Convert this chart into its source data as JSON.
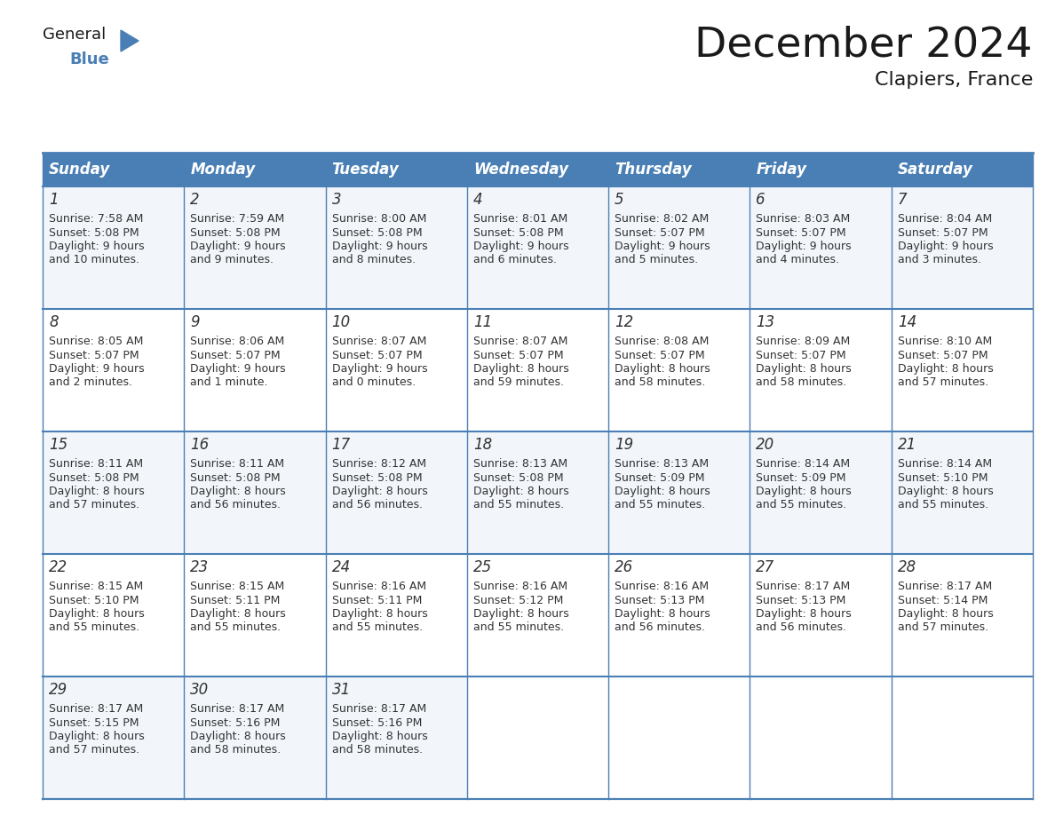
{
  "title": "December 2024",
  "subtitle": "Clapiers, France",
  "header_bg": "#4a7fb5",
  "header_text": "#ffffff",
  "cell_bg_even": "#f2f6fb",
  "cell_bg_odd": "#ffffff",
  "grid_color": "#4a7fb5",
  "day_headers": [
    "Sunday",
    "Monday",
    "Tuesday",
    "Wednesday",
    "Thursday",
    "Friday",
    "Saturday"
  ],
  "days": [
    {
      "day": 1,
      "col": 0,
      "row": 0,
      "sunrise": "7:58 AM",
      "sunset": "5:08 PM",
      "daylight1": "9 hours",
      "daylight2": "and 10 minutes."
    },
    {
      "day": 2,
      "col": 1,
      "row": 0,
      "sunrise": "7:59 AM",
      "sunset": "5:08 PM",
      "daylight1": "9 hours",
      "daylight2": "and 9 minutes."
    },
    {
      "day": 3,
      "col": 2,
      "row": 0,
      "sunrise": "8:00 AM",
      "sunset": "5:08 PM",
      "daylight1": "9 hours",
      "daylight2": "and 8 minutes."
    },
    {
      "day": 4,
      "col": 3,
      "row": 0,
      "sunrise": "8:01 AM",
      "sunset": "5:08 PM",
      "daylight1": "9 hours",
      "daylight2": "and 6 minutes."
    },
    {
      "day": 5,
      "col": 4,
      "row": 0,
      "sunrise": "8:02 AM",
      "sunset": "5:07 PM",
      "daylight1": "9 hours",
      "daylight2": "and 5 minutes."
    },
    {
      "day": 6,
      "col": 5,
      "row": 0,
      "sunrise": "8:03 AM",
      "sunset": "5:07 PM",
      "daylight1": "9 hours",
      "daylight2": "and 4 minutes."
    },
    {
      "day": 7,
      "col": 6,
      "row": 0,
      "sunrise": "8:04 AM",
      "sunset": "5:07 PM",
      "daylight1": "9 hours",
      "daylight2": "and 3 minutes."
    },
    {
      "day": 8,
      "col": 0,
      "row": 1,
      "sunrise": "8:05 AM",
      "sunset": "5:07 PM",
      "daylight1": "9 hours",
      "daylight2": "and 2 minutes."
    },
    {
      "day": 9,
      "col": 1,
      "row": 1,
      "sunrise": "8:06 AM",
      "sunset": "5:07 PM",
      "daylight1": "9 hours",
      "daylight2": "and 1 minute."
    },
    {
      "day": 10,
      "col": 2,
      "row": 1,
      "sunrise": "8:07 AM",
      "sunset": "5:07 PM",
      "daylight1": "9 hours",
      "daylight2": "and 0 minutes."
    },
    {
      "day": 11,
      "col": 3,
      "row": 1,
      "sunrise": "8:07 AM",
      "sunset": "5:07 PM",
      "daylight1": "8 hours",
      "daylight2": "and 59 minutes."
    },
    {
      "day": 12,
      "col": 4,
      "row": 1,
      "sunrise": "8:08 AM",
      "sunset": "5:07 PM",
      "daylight1": "8 hours",
      "daylight2": "and 58 minutes."
    },
    {
      "day": 13,
      "col": 5,
      "row": 1,
      "sunrise": "8:09 AM",
      "sunset": "5:07 PM",
      "daylight1": "8 hours",
      "daylight2": "and 58 minutes."
    },
    {
      "day": 14,
      "col": 6,
      "row": 1,
      "sunrise": "8:10 AM",
      "sunset": "5:07 PM",
      "daylight1": "8 hours",
      "daylight2": "and 57 minutes."
    },
    {
      "day": 15,
      "col": 0,
      "row": 2,
      "sunrise": "8:11 AM",
      "sunset": "5:08 PM",
      "daylight1": "8 hours",
      "daylight2": "and 57 minutes."
    },
    {
      "day": 16,
      "col": 1,
      "row": 2,
      "sunrise": "8:11 AM",
      "sunset": "5:08 PM",
      "daylight1": "8 hours",
      "daylight2": "and 56 minutes."
    },
    {
      "day": 17,
      "col": 2,
      "row": 2,
      "sunrise": "8:12 AM",
      "sunset": "5:08 PM",
      "daylight1": "8 hours",
      "daylight2": "and 56 minutes."
    },
    {
      "day": 18,
      "col": 3,
      "row": 2,
      "sunrise": "8:13 AM",
      "sunset": "5:08 PM",
      "daylight1": "8 hours",
      "daylight2": "and 55 minutes."
    },
    {
      "day": 19,
      "col": 4,
      "row": 2,
      "sunrise": "8:13 AM",
      "sunset": "5:09 PM",
      "daylight1": "8 hours",
      "daylight2": "and 55 minutes."
    },
    {
      "day": 20,
      "col": 5,
      "row": 2,
      "sunrise": "8:14 AM",
      "sunset": "5:09 PM",
      "daylight1": "8 hours",
      "daylight2": "and 55 minutes."
    },
    {
      "day": 21,
      "col": 6,
      "row": 2,
      "sunrise": "8:14 AM",
      "sunset": "5:10 PM",
      "daylight1": "8 hours",
      "daylight2": "and 55 minutes."
    },
    {
      "day": 22,
      "col": 0,
      "row": 3,
      "sunrise": "8:15 AM",
      "sunset": "5:10 PM",
      "daylight1": "8 hours",
      "daylight2": "and 55 minutes."
    },
    {
      "day": 23,
      "col": 1,
      "row": 3,
      "sunrise": "8:15 AM",
      "sunset": "5:11 PM",
      "daylight1": "8 hours",
      "daylight2": "and 55 minutes."
    },
    {
      "day": 24,
      "col": 2,
      "row": 3,
      "sunrise": "8:16 AM",
      "sunset": "5:11 PM",
      "daylight1": "8 hours",
      "daylight2": "and 55 minutes."
    },
    {
      "day": 25,
      "col": 3,
      "row": 3,
      "sunrise": "8:16 AM",
      "sunset": "5:12 PM",
      "daylight1": "8 hours",
      "daylight2": "and 55 minutes."
    },
    {
      "day": 26,
      "col": 4,
      "row": 3,
      "sunrise": "8:16 AM",
      "sunset": "5:13 PM",
      "daylight1": "8 hours",
      "daylight2": "and 56 minutes."
    },
    {
      "day": 27,
      "col": 5,
      "row": 3,
      "sunrise": "8:17 AM",
      "sunset": "5:13 PM",
      "daylight1": "8 hours",
      "daylight2": "and 56 minutes."
    },
    {
      "day": 28,
      "col": 6,
      "row": 3,
      "sunrise": "8:17 AM",
      "sunset": "5:14 PM",
      "daylight1": "8 hours",
      "daylight2": "and 57 minutes."
    },
    {
      "day": 29,
      "col": 0,
      "row": 4,
      "sunrise": "8:17 AM",
      "sunset": "5:15 PM",
      "daylight1": "8 hours",
      "daylight2": "and 57 minutes."
    },
    {
      "day": 30,
      "col": 1,
      "row": 4,
      "sunrise": "8:17 AM",
      "sunset": "5:16 PM",
      "daylight1": "8 hours",
      "daylight2": "and 58 minutes."
    },
    {
      "day": 31,
      "col": 2,
      "row": 4,
      "sunrise": "8:17 AM",
      "sunset": "5:16 PM",
      "daylight1": "8 hours",
      "daylight2": "and 58 minutes."
    }
  ],
  "n_rows": 5,
  "n_cols": 7,
  "logo_color_general": "#1a1a1a",
  "logo_color_blue": "#4a7fb5",
  "logo_triangle_color": "#4a7fb5",
  "title_fontsize": 34,
  "subtitle_fontsize": 16,
  "header_fontsize": 12,
  "day_num_fontsize": 12,
  "cell_text_fontsize": 9
}
